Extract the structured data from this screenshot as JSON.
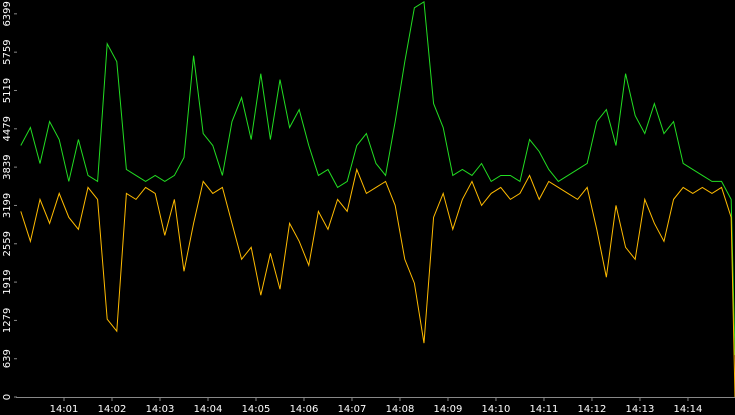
{
  "chart_data": {
    "type": "line",
    "x": [
      0.1,
      0.3,
      0.5,
      0.7,
      0.9,
      1.1,
      1.3,
      1.5,
      1.7,
      1.9,
      2.1,
      2.3,
      2.5,
      2.7,
      2.9,
      3.1,
      3.3,
      3.5,
      3.7,
      3.9,
      4.1,
      4.3,
      4.5,
      4.7,
      4.9,
      5.1,
      5.3,
      5.5,
      5.7,
      5.9,
      6.1,
      6.3,
      6.5,
      6.7,
      6.9,
      7.1,
      7.3,
      7.5,
      7.7,
      7.9,
      8.1,
      8.3,
      8.5,
      8.7,
      8.9,
      9.1,
      9.3,
      9.5,
      9.7,
      9.9,
      10.1,
      10.3,
      10.5,
      10.7,
      10.9,
      11.1,
      11.3,
      11.5,
      11.7,
      11.9,
      12.1,
      12.3,
      12.5,
      12.7,
      12.9,
      13.1,
      13.3,
      13.5,
      13.7,
      13.9,
      14.1,
      14.3,
      14.5,
      14.7,
      14.9,
      14.98
    ],
    "series": [
      {
        "color": "#22dd22",
        "values": [
          4200,
          4500,
          3900,
          4600,
          4300,
          3600,
          4300,
          3700,
          3600,
          5900,
          5600,
          3800,
          3700,
          3600,
          3700,
          3600,
          3700,
          4000,
          5700,
          4400,
          4200,
          3700,
          4600,
          5000,
          4300,
          5400,
          4300,
          5300,
          4500,
          4800,
          4200,
          3700,
          3800,
          3500,
          3600,
          4200,
          4400,
          3900,
          3700,
          4600,
          5600,
          6500,
          6600,
          4900,
          4500,
          3700,
          3800,
          3700,
          3900,
          3600,
          3700,
          3700,
          3600,
          4300,
          4100,
          3800,
          3600,
          3700,
          3800,
          3900,
          4600,
          4800,
          4200,
          5400,
          4700,
          4400,
          4900,
          4400,
          4600,
          3900,
          3800,
          3700,
          3600,
          3600,
          3300,
          700
        ]
      },
      {
        "color": "#ffbb00",
        "values": [
          3100,
          2600,
          3300,
          2900,
          3400,
          3000,
          2800,
          3500,
          3300,
          1300,
          1100,
          3400,
          3300,
          3500,
          3400,
          2700,
          3300,
          2100,
          2900,
          3600,
          3400,
          3500,
          2900,
          2300,
          2500,
          1700,
          2400,
          1800,
          2900,
          2600,
          2200,
          3100,
          2800,
          3300,
          3100,
          3800,
          3400,
          3500,
          3600,
          3200,
          2300,
          1900,
          900,
          3000,
          3400,
          2800,
          3300,
          3600,
          3200,
          3400,
          3500,
          3300,
          3400,
          3700,
          3300,
          3600,
          3500,
          3400,
          3300,
          3500,
          2800,
          2000,
          3200,
          2500,
          2300,
          3300,
          2900,
          2600,
          3300,
          3500,
          3400,
          3500,
          3400,
          3500,
          3000,
          0
        ]
      }
    ],
    "xlim": [
      0,
      14.98
    ],
    "xticks": [
      {
        "value": 1,
        "label": "14:01"
      },
      {
        "value": 2,
        "label": "14:02"
      },
      {
        "value": 3,
        "label": "14:03"
      },
      {
        "value": 4,
        "label": "14:04"
      },
      {
        "value": 5,
        "label": "14:05"
      },
      {
        "value": 6,
        "label": "14:06"
      },
      {
        "value": 7,
        "label": "14:07"
      },
      {
        "value": 8,
        "label": "14:08"
      },
      {
        "value": 9,
        "label": "14:09"
      },
      {
        "value": 10,
        "label": "14:10"
      },
      {
        "value": 11,
        "label": "14:11"
      },
      {
        "value": 12,
        "label": "14:12"
      },
      {
        "value": 13,
        "label": "14:13"
      },
      {
        "value": 14,
        "label": "14:14"
      }
    ],
    "ylim": [
      0,
      6630
    ],
    "yticks": [
      0,
      639,
      1279,
      1919,
      2559,
      3199,
      3839,
      4479,
      5119,
      5759,
      6399
    ]
  }
}
